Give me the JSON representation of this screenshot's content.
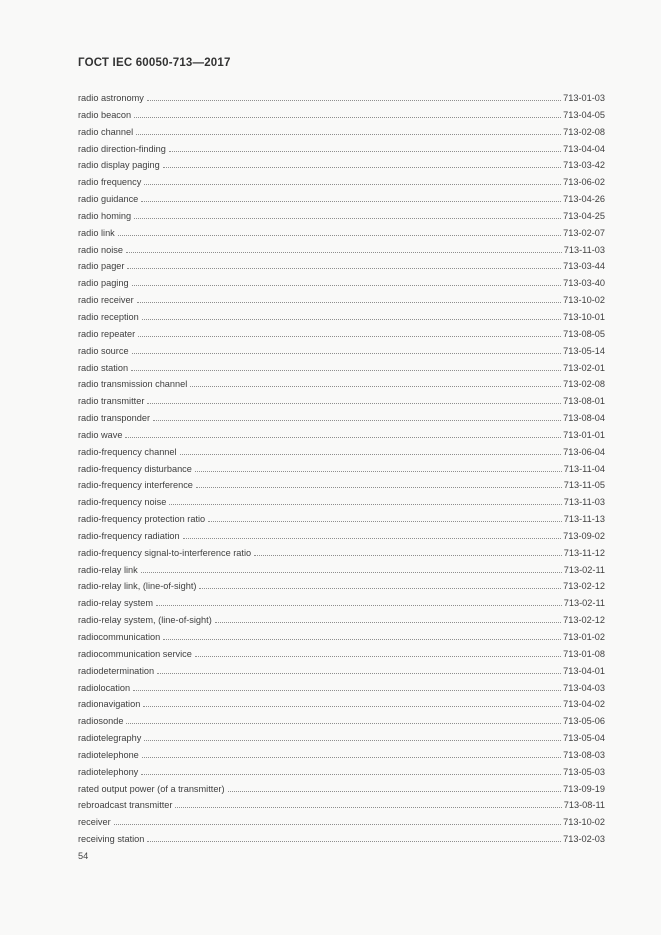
{
  "page": {
    "header": "ГОСТ IEC 60050-713—2017",
    "page_number": "54"
  },
  "colors": {
    "page_bg": "#f9f9f8",
    "text": "#3f3f3f",
    "leader_dots": "#8e8e8e"
  },
  "index_entries": [
    {
      "term": "radio astronomy",
      "code": "713-01-03"
    },
    {
      "term": "radio beacon",
      "code": "713-04-05"
    },
    {
      "term": "radio channel",
      "code": "713-02-08"
    },
    {
      "term": "radio direction-finding",
      "code": "713-04-04"
    },
    {
      "term": "radio display paging",
      "code": "713-03-42"
    },
    {
      "term": "radio frequency",
      "code": "713-06-02"
    },
    {
      "term": "radio guidance",
      "code": "713-04-26"
    },
    {
      "term": "radio homing",
      "code": "713-04-25"
    },
    {
      "term": "radio link",
      "code": "713-02-07"
    },
    {
      "term": "radio noise",
      "code": "713-11-03"
    },
    {
      "term": "radio pager",
      "code": "713-03-44"
    },
    {
      "term": "radio paging",
      "code": "713-03-40"
    },
    {
      "term": "radio receiver",
      "code": "713-10-02"
    },
    {
      "term": "radio reception",
      "code": "713-10-01"
    },
    {
      "term": "radio repeater",
      "code": "713-08-05"
    },
    {
      "term": "radio source",
      "code": "713-05-14"
    },
    {
      "term": "radio station",
      "code": "713-02-01"
    },
    {
      "term": "radio transmission channel",
      "code": "713-02-08"
    },
    {
      "term": "radio transmitter",
      "code": "713-08-01"
    },
    {
      "term": "radio transponder",
      "code": "713-08-04"
    },
    {
      "term": "radio wave",
      "code": "713-01-01"
    },
    {
      "term": "radio-frequency channel",
      "code": "713-06-04"
    },
    {
      "term": "radio-frequency disturbance",
      "code": "713-11-04"
    },
    {
      "term": "radio-frequency interference",
      "code": "713-11-05"
    },
    {
      "term": "radio-frequency noise",
      "code": "713-11-03"
    },
    {
      "term": "radio-frequency protection ratio",
      "code": "713-11-13"
    },
    {
      "term": "radio-frequency radiation",
      "code": "713-09-02"
    },
    {
      "term": "radio-frequency signal-to-interference ratio",
      "code": "713-11-12"
    },
    {
      "term": "radio-relay link",
      "code": "713-02-11"
    },
    {
      "term": "radio-relay link, (line-of-sight)",
      "code": "713-02-12"
    },
    {
      "term": "radio-relay system",
      "code": "713-02-11"
    },
    {
      "term": "radio-relay system, (line-of-sight)",
      "code": "713-02-12"
    },
    {
      "term": "radiocommunication",
      "code": "713-01-02"
    },
    {
      "term": "radiocommunication service",
      "code": "713-01-08"
    },
    {
      "term": "radiodetermination",
      "code": "713-04-01"
    },
    {
      "term": "radiolocation",
      "code": "713-04-03"
    },
    {
      "term": "radionavigation",
      "code": "713-04-02"
    },
    {
      "term": "radiosonde",
      "code": "713-05-06"
    },
    {
      "term": "radiotelegraphy",
      "code": "713-05-04"
    },
    {
      "term": "radiotelephone",
      "code": "713-08-03"
    },
    {
      "term": "radiotelephony",
      "code": "713-05-03"
    },
    {
      "term": "rated output power (of a transmitter)",
      "code": "713-09-19"
    },
    {
      "term": "rebroadcast transmitter",
      "code": "713-08-11"
    },
    {
      "term": "receiver",
      "code": "713-10-02"
    },
    {
      "term": "receiving station",
      "code": "713-02-03"
    }
  ]
}
